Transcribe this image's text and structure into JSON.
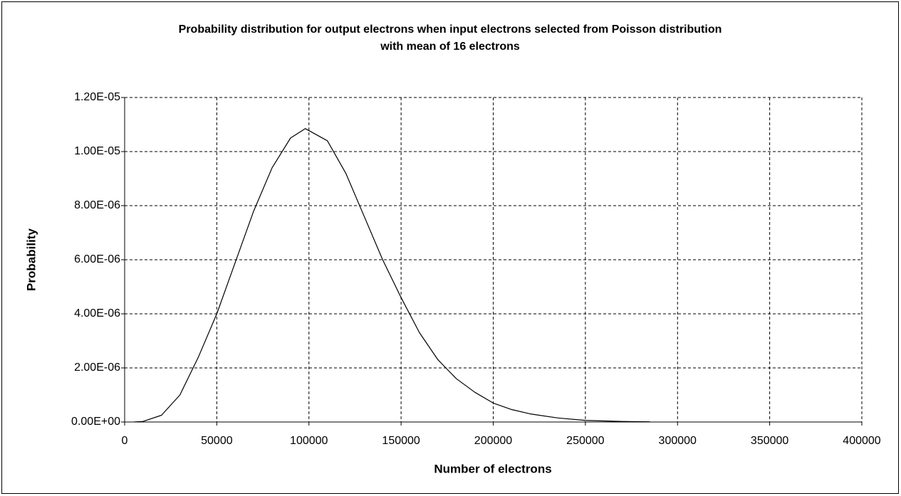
{
  "chart_data": {
    "type": "line",
    "title": [
      "Probability distribution for output electrons when input electrons selected from Poisson distribution",
      "with mean of 16 electrons"
    ],
    "x_label": "Number of electrons",
    "y_label": "Probability",
    "x": [
      5000,
      10000,
      20000,
      30000,
      40000,
      50000,
      60000,
      70000,
      80000,
      90000,
      98000,
      110000,
      120000,
      130000,
      140000,
      150000,
      160000,
      170000,
      180000,
      190000,
      200000,
      210000,
      220000,
      235000,
      250000,
      270000,
      285000
    ],
    "values": [
      1e-09,
      2e-08,
      2.5e-07,
      1e-06,
      2.4e-06,
      4e-06,
      5.9e-06,
      7.8e-06,
      9.4e-06,
      1.05e-05,
      1.085e-05,
      1.04e-05,
      9.2e-06,
      7.6e-06,
      6e-06,
      4.6e-06,
      3.3e-06,
      2.3e-06,
      1.6e-06,
      1.1e-06,
      7e-07,
      4.6e-07,
      3e-07,
      1.5e-07,
      6e-08,
      2e-08,
      8e-09
    ],
    "color": "#000000",
    "xlim": [
      0,
      400000
    ],
    "xticks": [
      0,
      50000,
      100000,
      150000,
      200000,
      250000,
      300000,
      350000,
      400000
    ],
    "ylim": [
      0,
      1.2e-05
    ],
    "yticks": [
      {
        "value": 0,
        "label": "0.00E+00"
      },
      {
        "value": 2e-06,
        "label": "2.00E-06"
      },
      {
        "value": 4e-06,
        "label": "4.00E-06"
      },
      {
        "value": 6e-06,
        "label": "6.00E-06"
      },
      {
        "value": 8e-06,
        "label": "8.00E-06"
      },
      {
        "value": 1e-05,
        "label": "1.00E-05"
      },
      {
        "value": 1.2e-05,
        "label": "1.20E-05"
      }
    ],
    "grid": true
  }
}
